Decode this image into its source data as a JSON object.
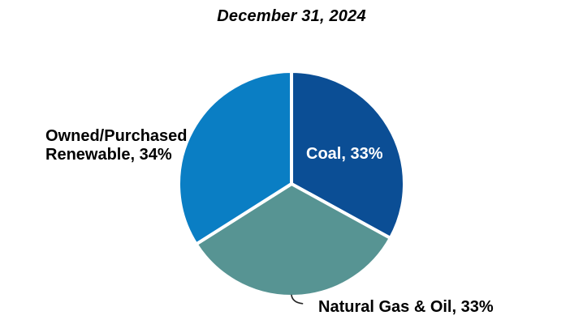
{
  "chart_data": {
    "type": "pie",
    "title": "December 31, 2024",
    "slices": [
      {
        "label": "Coal",
        "value": 33,
        "display": "Coal, 33%",
        "color": "#0B4E95",
        "label_placement": "inside",
        "label_color": "#FFFFFF"
      },
      {
        "label": "Natural Gas & Oil",
        "value": 33,
        "display": "Natural Gas & Oil, 33%",
        "color": "#579493",
        "label_placement": "outside-bottom",
        "label_color": "#000000"
      },
      {
        "label": "Owned/Purchased Renewable",
        "value": 34,
        "display": "Owned/Purchased Renewable, 34%",
        "color": "#0A7EC4",
        "label_placement": "outside-left",
        "label_color": "#000000"
      }
    ],
    "start_angle_deg": 0,
    "direction": "clockwise",
    "separator_color": "#FFFFFF",
    "background_color": "#FFFFFF",
    "title_color": "#000000",
    "legend": "none",
    "leader_line": {
      "for_slice": "Natural Gas & Oil",
      "color": "#262626"
    }
  }
}
